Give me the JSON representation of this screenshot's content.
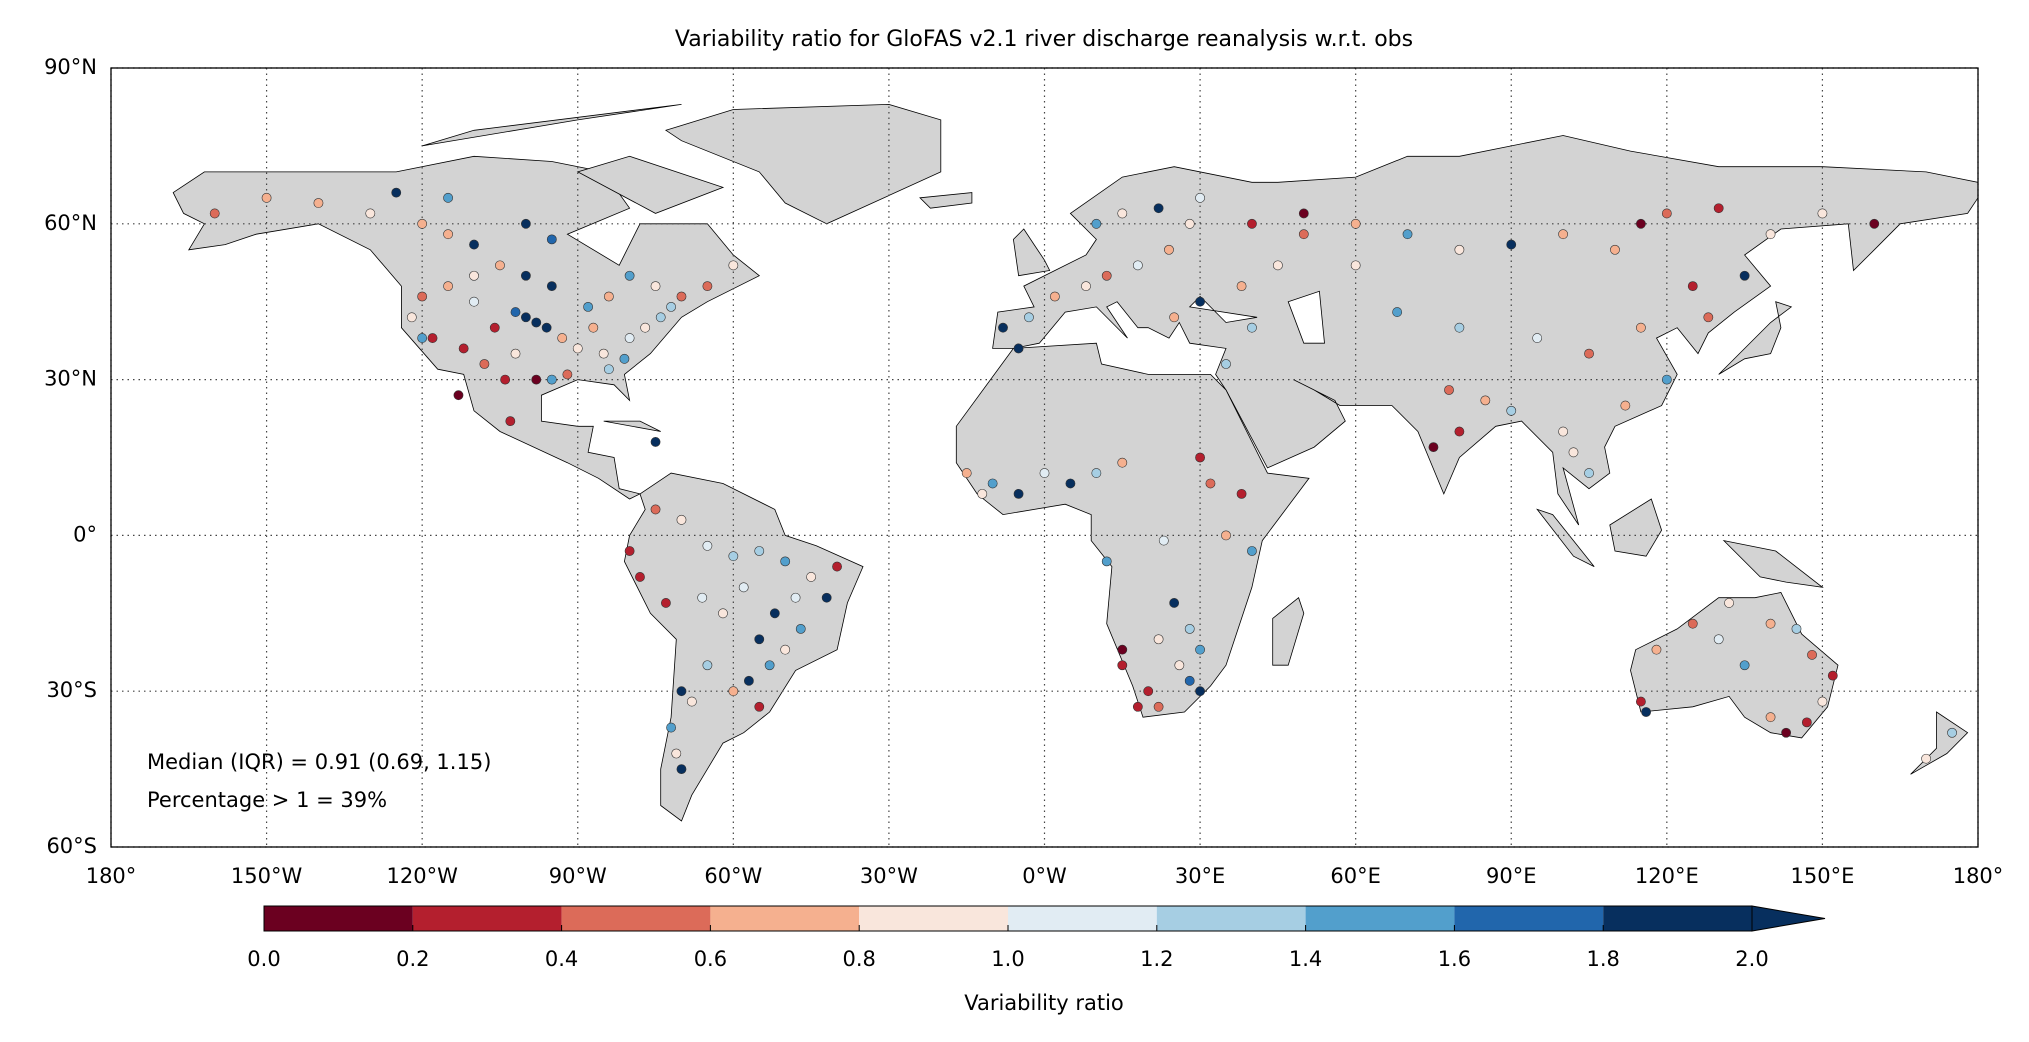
{
  "chart_data": {
    "type": "scatter",
    "title": "Variability ratio for GloFAS v2.1 river discharge reanalysis w.r.t. obs",
    "annotations": [
      "Median (IQR) = 0.91 (0.69, 1.15)",
      "Percentage > 1 = 39%"
    ],
    "xlim": [
      -180,
      180
    ],
    "ylim": [
      -60,
      90
    ],
    "xticks": [
      {
        "value": -180,
        "label": "180°"
      },
      {
        "value": -150,
        "label": "150°W"
      },
      {
        "value": -120,
        "label": "120°W"
      },
      {
        "value": -90,
        "label": "90°W"
      },
      {
        "value": -60,
        "label": "60°W"
      },
      {
        "value": -30,
        "label": "30°W"
      },
      {
        "value": 0,
        "label": "0°W"
      },
      {
        "value": 30,
        "label": "30°E"
      },
      {
        "value": 60,
        "label": "60°E"
      },
      {
        "value": 90,
        "label": "90°E"
      },
      {
        "value": 120,
        "label": "120°E"
      },
      {
        "value": 150,
        "label": "150°E"
      },
      {
        "value": 180,
        "label": "180°"
      }
    ],
    "yticks": [
      {
        "value": 90,
        "label": "90°N"
      },
      {
        "value": 60,
        "label": "60°N"
      },
      {
        "value": 30,
        "label": "30°N"
      },
      {
        "value": 0,
        "label": "0°"
      },
      {
        "value": -30,
        "label": "30°S"
      },
      {
        "value": -60,
        "label": "60°S"
      }
    ],
    "grid": true,
    "colorbar": {
      "label": "Variability ratio",
      "ticks": [
        {
          "value": 0,
          "label": "0.0"
        },
        {
          "value": 0.2,
          "label": "0.2"
        },
        {
          "value": 0.4,
          "label": "0.4"
        },
        {
          "value": 0.6,
          "label": "0.6"
        },
        {
          "value": 0.8,
          "label": "0.8"
        },
        {
          "value": 1,
          "label": "1.0"
        },
        {
          "value": 1.2,
          "label": "1.2"
        },
        {
          "value": 1.4,
          "label": "1.4"
        },
        {
          "value": 1.6,
          "label": "1.6"
        },
        {
          "value": 1.8,
          "label": "1.8"
        },
        {
          "value": 2,
          "label": "2.0"
        }
      ],
      "colors": [
        "#6b0020",
        "#b41f2e",
        "#dc6b59",
        "#f5b08f",
        "#f9e6dc",
        "#e1ecf3",
        "#a6cee3",
        "#529fcc",
        "#2166ac",
        "#072f5e"
      ],
      "extend": "max"
    },
    "x": [
      -100,
      -98,
      -96,
      -102,
      -93,
      -90,
      -85,
      -80,
      -77,
      -74,
      -72,
      -70,
      -84,
      -88,
      -95,
      -100,
      -105,
      -110,
      -115,
      -120,
      -122,
      -118,
      -112,
      -108,
      -104,
      -98,
      -95,
      -92,
      -84,
      -81,
      -110,
      -115,
      -120,
      -130,
      -140,
      -150,
      -160,
      -125,
      -115,
      -100,
      -95,
      -80,
      -75,
      -65,
      -60,
      -110,
      -106,
      -102,
      -87,
      -120,
      -113,
      -103,
      -75,
      -75,
      -70,
      -65,
      -60,
      -55,
      -50,
      -45,
      -42,
      -40,
      -48,
      -52,
      -55,
      -50,
      -47,
      -53,
      -57,
      -55,
      -60,
      -65,
      -70,
      -72,
      -71,
      -70,
      -78,
      -80,
      -66,
      -62,
      -58,
      -73,
      -68,
      -8,
      -3,
      2,
      8,
      12,
      18,
      24,
      28,
      22,
      15,
      10,
      30,
      40,
      50,
      45,
      38,
      30,
      25,
      40,
      50,
      60,
      70,
      80,
      90,
      100,
      110,
      115,
      120,
      130,
      140,
      150,
      160,
      125,
      135,
      128,
      115,
      105,
      95,
      80,
      68,
      60,
      78,
      85,
      80,
      75,
      90,
      102,
      100,
      105,
      120,
      112,
      -5,
      35,
      -15,
      -10,
      -5,
      0,
      5,
      10,
      15,
      -12,
      30,
      32,
      38,
      35,
      40,
      25,
      28,
      22,
      30,
      26,
      28,
      30,
      20,
      18,
      22,
      15,
      15,
      12,
      23,
      115,
      118,
      125,
      132,
      140,
      145,
      148,
      152,
      150,
      147,
      143,
      140,
      135,
      130,
      116,
      170,
      175
    ],
    "y": [
      42,
      41,
      40,
      43,
      38,
      36,
      35,
      38,
      40,
      42,
      44,
      46,
      46,
      44,
      48,
      50,
      52,
      50,
      48,
      46,
      42,
      38,
      36,
      33,
      30,
      30,
      30,
      31,
      32,
      34,
      56,
      58,
      60,
      62,
      64,
      65,
      62,
      66,
      65,
      60,
      57,
      50,
      48,
      48,
      52,
      45,
      40,
      35,
      40,
      38,
      27,
      22,
      18,
      5,
      3,
      -2,
      -4,
      -3,
      -5,
      -8,
      -12,
      -6,
      -12,
      -15,
      -20,
      -22,
      -18,
      -25,
      -28,
      -33,
      -30,
      -25,
      -30,
      -37,
      -42,
      -45,
      -8,
      -3,
      -12,
      -15,
      -10,
      -13,
      -32,
      40,
      42,
      46,
      48,
      50,
      52,
      55,
      60,
      63,
      62,
      60,
      65,
      60,
      58,
      52,
      48,
      45,
      42,
      40,
      62,
      60,
      58,
      55,
      56,
      58,
      55,
      60,
      62,
      63,
      58,
      62,
      60,
      48,
      50,
      42,
      40,
      35,
      38,
      40,
      43,
      52,
      28,
      26,
      20,
      17,
      24,
      16,
      20,
      12,
      30,
      25,
      36,
      33,
      12,
      10,
      8,
      12,
      10,
      12,
      14,
      8,
      15,
      10,
      8,
      0,
      -3,
      -13,
      -18,
      -20,
      -22,
      -25,
      -28,
      -30,
      -30,
      -33,
      -33,
      -22,
      -25,
      -5,
      -1,
      -32,
      -22,
      -17,
      -13,
      -17,
      -18,
      -23,
      -27,
      -32,
      -36,
      -38,
      -35,
      -25,
      -20,
      -34,
      -43,
      -38
    ],
    "values": [
      1.9,
      1.95,
      1.8,
      1.7,
      0.7,
      0.9,
      0.85,
      1.1,
      0.95,
      1.2,
      1.3,
      0.5,
      0.6,
      1.4,
      1.9,
      1.9,
      0.7,
      0.8,
      0.6,
      0.5,
      0.9,
      0.3,
      0.2,
      0.5,
      0.3,
      0.1,
      1.5,
      0.45,
      1.3,
      1.5,
      1.9,
      0.6,
      0.7,
      0.85,
      0.65,
      0.75,
      0.55,
      1.9,
      1.45,
      1.9,
      1.7,
      1.5,
      0.9,
      0.55,
      0.8,
      1.1,
      0.3,
      0.9,
      0.75,
      1.5,
      0.1,
      0.2,
      1.9,
      0.5,
      0.9,
      1.1,
      1.3,
      1.2,
      1.5,
      0.9,
      1.9,
      0.3,
      1.1,
      1.9,
      1.9,
      0.9,
      1.5,
      1.4,
      1.9,
      0.3,
      0.7,
      1.2,
      1.9,
      1.5,
      0.8,
      1.9,
      0.3,
      0.2,
      1.05,
      0.85,
      1.15,
      0.2,
      0.9,
      1.9,
      1.3,
      0.7,
      0.9,
      0.5,
      1.1,
      0.7,
      0.9,
      1.9,
      0.8,
      1.5,
      1.1,
      0.3,
      0.5,
      0.85,
      0.7,
      1.9,
      0.6,
      1.3,
      0.1,
      0.7,
      1.5,
      0.9,
      1.9,
      0.7,
      0.6,
      0.1,
      0.5,
      0.2,
      0.8,
      0.9,
      0.1,
      0.3,
      1.9,
      0.5,
      0.7,
      0.55,
      1.15,
      1.3,
      1.5,
      0.9,
      0.5,
      0.7,
      0.35,
      0.1,
      1.3,
      0.9,
      0.8,
      1.2,
      1.5,
      0.7,
      1.9,
      1.3,
      0.7,
      1.5,
      1.9,
      1.1,
      1.9,
      1.3,
      0.7,
      0.9,
      0.3,
      0.5,
      0.2,
      0.7,
      1.5,
      1.9,
      1.2,
      0.8,
      1.5,
      0.9,
      1.7,
      1.9,
      0.3,
      0.2,
      0.5,
      0.1,
      0.2,
      1.5,
      1.1,
      0.3,
      0.7,
      0.5,
      0.9,
      0.7,
      1.3,
      0.5,
      0.3,
      0.9,
      0.2,
      0.1,
      0.7,
      1.5,
      1.05,
      1.9,
      0.8,
      1.3
    ]
  }
}
